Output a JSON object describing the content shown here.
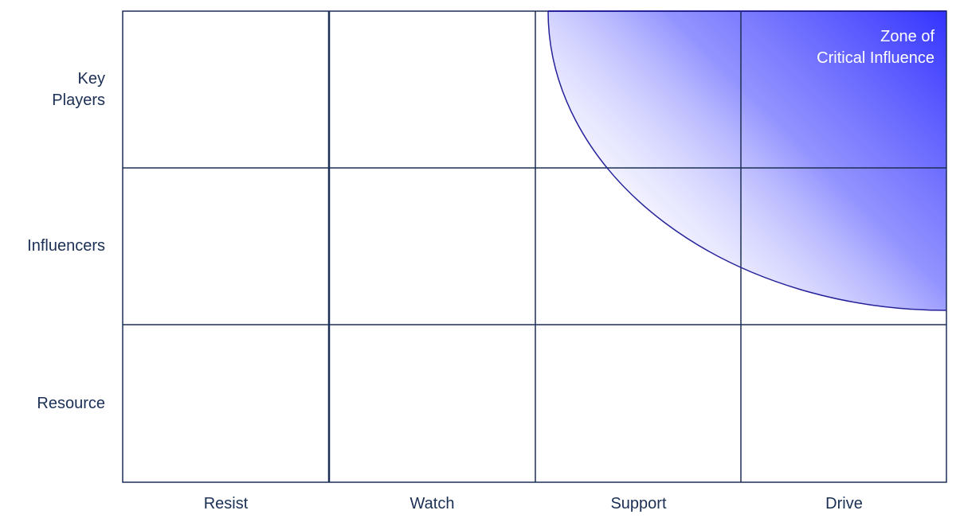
{
  "rows": [
    {
      "label": "Key\nPlayers"
    },
    {
      "label": "Influencers"
    },
    {
      "label": "Resource"
    }
  ],
  "columns": [
    {
      "label": "Resist"
    },
    {
      "label": "Watch"
    },
    {
      "label": "Support"
    },
    {
      "label": "Drive"
    }
  ],
  "zone": {
    "line1": "Zone of",
    "line2": "Critical Influence"
  },
  "colors": {
    "grid": "#1b2f55",
    "zone_fill": "#3333ff",
    "zone_edge": "#26229a"
  }
}
